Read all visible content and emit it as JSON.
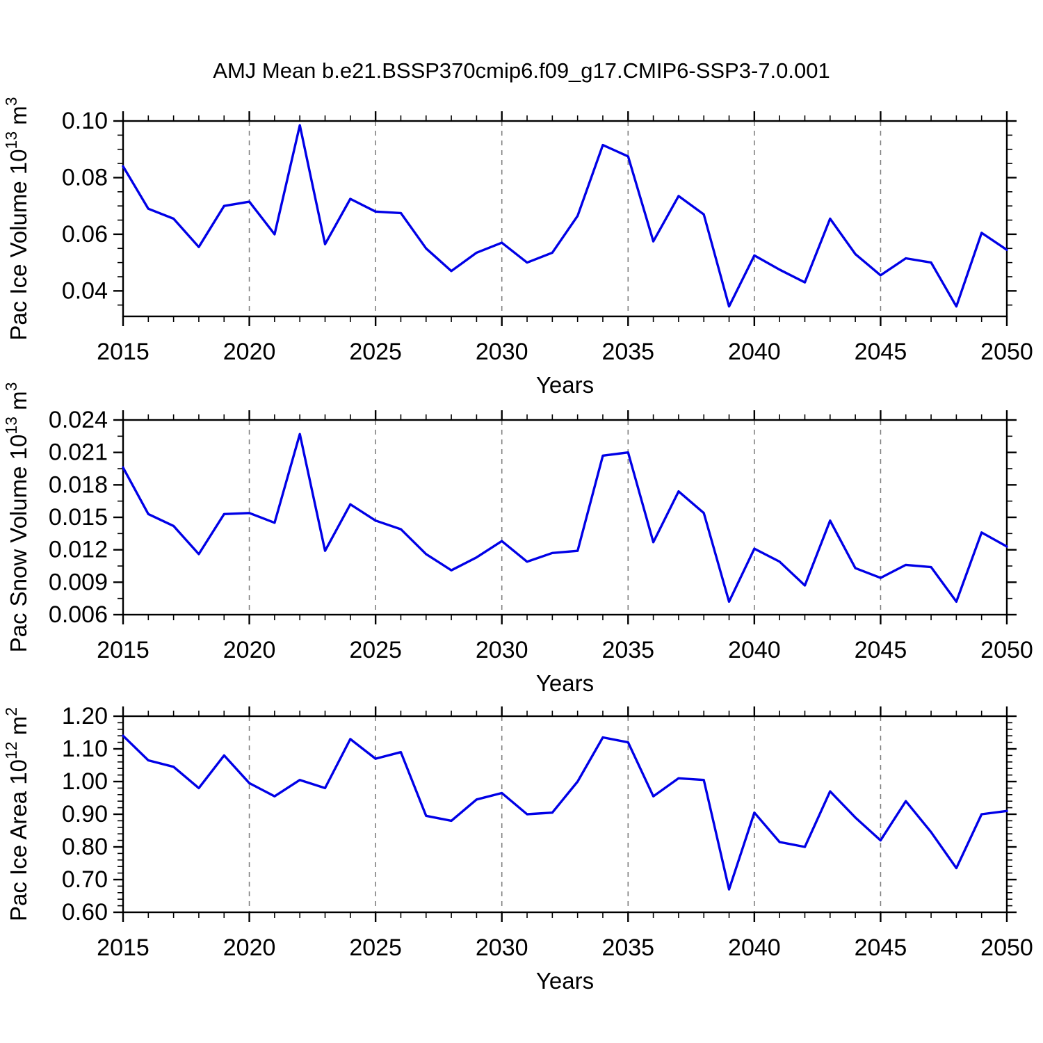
{
  "title": "AMJ Mean b.e21.BSSP370cmip6.f09_g17.CMIP6-SSP3-7.0.001",
  "colors": {
    "line": "#0000E6",
    "axis": "#000000",
    "grid": "#808080",
    "background": "#ffffff"
  },
  "chart_data": [
    {
      "type": "line",
      "title": "",
      "xlabel": "Years",
      "ylabel": "Pac Ice Volume 10^13 m^3",
      "ylabel_parts": [
        {
          "text": "Pac Ice Volume 10",
          "sup": false
        },
        {
          "text": "13",
          "sup": true
        },
        {
          "text": " m",
          "sup": false
        },
        {
          "text": "3",
          "sup": true
        }
      ],
      "x": [
        2015,
        2016,
        2017,
        2018,
        2019,
        2020,
        2021,
        2022,
        2023,
        2024,
        2025,
        2026,
        2027,
        2028,
        2029,
        2030,
        2031,
        2032,
        2033,
        2034,
        2035,
        2036,
        2037,
        2038,
        2039,
        2040,
        2041,
        2042,
        2043,
        2044,
        2045,
        2046,
        2047,
        2048,
        2049,
        2050
      ],
      "values": [
        0.084,
        0.069,
        0.0655,
        0.0555,
        0.07,
        0.0715,
        0.06,
        0.0985,
        0.0565,
        0.0725,
        0.068,
        0.0675,
        0.055,
        0.047,
        0.0535,
        0.057,
        0.05,
        0.0535,
        0.0665,
        0.0915,
        0.0875,
        0.0575,
        0.0735,
        0.067,
        0.0345,
        0.0525,
        0.0475,
        0.043,
        0.0655,
        0.053,
        0.0455,
        0.0515,
        0.05,
        0.0345,
        0.0605,
        0.0545
      ],
      "xlim": [
        2015,
        2050
      ],
      "ylim": [
        0.031,
        0.1
      ],
      "yticks": [
        0.1,
        0.08,
        0.06,
        0.04
      ],
      "ytick_labels": [
        "0.10",
        "0.08",
        "0.06",
        "0.04"
      ],
      "y_minor_step": 0.005,
      "xticks_major": [
        2015,
        2020,
        2025,
        2030,
        2035,
        2040,
        2045,
        2050
      ],
      "xtick_labels": [
        "2015",
        "2020",
        "2025",
        "2030",
        "2035",
        "2040",
        "2045",
        "2050"
      ],
      "x_minor_step": 1,
      "grid_years": [
        2020,
        2025,
        2030,
        2035,
        2040,
        2045
      ],
      "grid_style": "vertical-dashed",
      "legend": "none"
    },
    {
      "type": "line",
      "title": "",
      "xlabel": "Years",
      "ylabel": "Pac Snow Volume 10^13 m^3",
      "ylabel_parts": [
        {
          "text": "Pac Snow Volume 10",
          "sup": false
        },
        {
          "text": "13",
          "sup": true
        },
        {
          "text": " m",
          "sup": false
        },
        {
          "text": "3",
          "sup": true
        }
      ],
      "x": [
        2015,
        2016,
        2017,
        2018,
        2019,
        2020,
        2021,
        2022,
        2023,
        2024,
        2025,
        2026,
        2027,
        2028,
        2029,
        2030,
        2031,
        2032,
        2033,
        2034,
        2035,
        2036,
        2037,
        2038,
        2039,
        2040,
        2041,
        2042,
        2043,
        2044,
        2045,
        2046,
        2047,
        2048,
        2049,
        2050
      ],
      "values": [
        0.0196,
        0.0153,
        0.0142,
        0.0116,
        0.0153,
        0.0154,
        0.0145,
        0.0227,
        0.0119,
        0.0162,
        0.0147,
        0.0139,
        0.0116,
        0.0101,
        0.0113,
        0.0128,
        0.0109,
        0.0117,
        0.0119,
        0.0207,
        0.021,
        0.0127,
        0.0174,
        0.0154,
        0.0072,
        0.0121,
        0.0109,
        0.0087,
        0.0147,
        0.0103,
        0.0094,
        0.0106,
        0.0104,
        0.0072,
        0.0136,
        0.0123
      ],
      "xlim": [
        2015,
        2050
      ],
      "ylim": [
        0.006,
        0.024
      ],
      "yticks": [
        0.024,
        0.021,
        0.018,
        0.015,
        0.012,
        0.009,
        0.006
      ],
      "ytick_labels": [
        "0.024",
        "0.021",
        "0.018",
        "0.015",
        "0.012",
        "0.009",
        "0.006"
      ],
      "y_minor_step": 0.0015,
      "xticks_major": [
        2015,
        2020,
        2025,
        2030,
        2035,
        2040,
        2045,
        2050
      ],
      "xtick_labels": [
        "2015",
        "2020",
        "2025",
        "2030",
        "2035",
        "2040",
        "2045",
        "2050"
      ],
      "x_minor_step": 1,
      "grid_years": [
        2020,
        2025,
        2030,
        2035,
        2040,
        2045
      ],
      "grid_style": "vertical-dashed",
      "legend": "none"
    },
    {
      "type": "line",
      "title": "",
      "xlabel": "Years",
      "ylabel": "Pac Ice Area 10^12 m^2",
      "ylabel_parts": [
        {
          "text": "Pac Ice Area 10",
          "sup": false
        },
        {
          "text": "12",
          "sup": true
        },
        {
          "text": " m",
          "sup": false
        },
        {
          "text": "2",
          "sup": true
        }
      ],
      "x": [
        2015,
        2016,
        2017,
        2018,
        2019,
        2020,
        2021,
        2022,
        2023,
        2024,
        2025,
        2026,
        2027,
        2028,
        2029,
        2030,
        2031,
        2032,
        2033,
        2034,
        2035,
        2036,
        2037,
        2038,
        2039,
        2040,
        2041,
        2042,
        2043,
        2044,
        2045,
        2046,
        2047,
        2048,
        2049,
        2050
      ],
      "values": [
        1.14,
        1.065,
        1.045,
        0.98,
        1.08,
        0.995,
        0.955,
        1.005,
        0.98,
        1.13,
        1.07,
        1.09,
        0.895,
        0.88,
        0.945,
        0.965,
        0.9,
        0.905,
        1.0,
        1.135,
        1.12,
        0.955,
        1.01,
        1.005,
        0.67,
        0.905,
        0.815,
        0.8,
        0.97,
        0.89,
        0.82,
        0.94,
        0.845,
        0.735,
        0.9,
        0.91
      ],
      "xlim": [
        2015,
        2050
      ],
      "ylim": [
        0.6,
        1.2
      ],
      "yticks": [
        1.2,
        1.1,
        1.0,
        0.9,
        0.8,
        0.7,
        0.6
      ],
      "ytick_labels": [
        "1.20",
        "1.10",
        "1.00",
        "0.90",
        "0.80",
        "0.70",
        "0.60"
      ],
      "y_minor_step": 0.02,
      "xticks_major": [
        2015,
        2020,
        2025,
        2030,
        2035,
        2040,
        2045,
        2050
      ],
      "xtick_labels": [
        "2015",
        "2020",
        "2025",
        "2030",
        "2035",
        "2040",
        "2045",
        "2050"
      ],
      "x_minor_step": 1,
      "grid_years": [
        2020,
        2025,
        2030,
        2035,
        2040,
        2045
      ],
      "grid_style": "vertical-dashed",
      "legend": "none"
    }
  ]
}
